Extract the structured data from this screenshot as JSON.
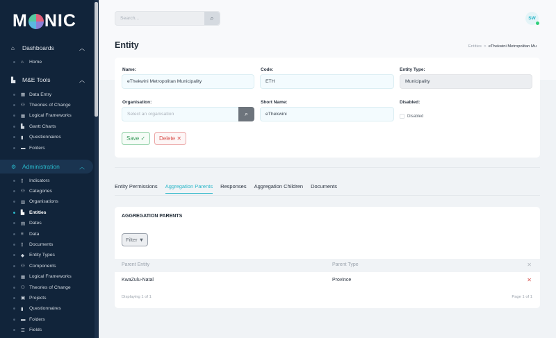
{
  "app": {
    "logo": "MONIC"
  },
  "sidebar": {
    "sections": [
      {
        "label": "Dashboards",
        "icon": "home-icon",
        "items": [
          {
            "label": "Home",
            "icon": "home-icon"
          }
        ]
      },
      {
        "label": "M&E Tools",
        "icon": "chart-icon",
        "items": [
          {
            "label": "Data Entry",
            "icon": "table-icon"
          },
          {
            "label": "Theories of Change",
            "icon": "sitemap-icon"
          },
          {
            "label": "Logical Frameworks",
            "icon": "table-icon"
          },
          {
            "label": "Gantt Charts",
            "icon": "chart-icon"
          },
          {
            "label": "Questionnaires",
            "icon": "clipboard-icon"
          },
          {
            "label": "Folders",
            "icon": "folder-icon"
          }
        ]
      },
      {
        "label": "Administration",
        "icon": "cogs-icon",
        "items": [
          {
            "label": "Indicators",
            "icon": "thermometer-icon"
          },
          {
            "label": "Categories",
            "icon": "sitemap-icon"
          },
          {
            "label": "Organisations",
            "icon": "building-icon"
          },
          {
            "label": "Entities",
            "icon": "city-icon"
          },
          {
            "label": "Dates",
            "icon": "calendar-icon"
          },
          {
            "label": "Data",
            "icon": "database-icon"
          },
          {
            "label": "Documents",
            "icon": "file-icon"
          },
          {
            "label": "Entity Types",
            "icon": "tags-icon"
          },
          {
            "label": "Components",
            "icon": "sitemap-icon"
          },
          {
            "label": "Logical Frameworks",
            "icon": "table-icon"
          },
          {
            "label": "Theories of Change",
            "icon": "sitemap-icon"
          },
          {
            "label": "Projects",
            "icon": "briefcase-icon"
          },
          {
            "label": "Questionnaires",
            "icon": "clipboard-icon"
          },
          {
            "label": "Folders",
            "icon": "folder-icon"
          },
          {
            "label": "Fields",
            "icon": "list-icon"
          }
        ]
      }
    ]
  },
  "header": {
    "search_placeholder": "Search...",
    "avatar": "SW"
  },
  "page": {
    "title": "Entity",
    "breadcrumb": [
      "Entities",
      "eThekwini Metropolitan Mu"
    ]
  },
  "form": {
    "name_label": "Name:",
    "name": "eThekwini Metropolitan Municipality",
    "code_label": "Code:",
    "code": "ETH",
    "type_label": "Entity Type:",
    "type": "Municipality",
    "org_label": "Organisation:",
    "org_placeholder": "Select an organisation",
    "short_label": "Short Name:",
    "short": "eThekwini",
    "disabled_label": "Disabled:",
    "disabled_check": "Disabled",
    "disabled": false,
    "save": "Save",
    "delete": "Delete"
  },
  "tabs": [
    "Entity Permissions",
    "Aggregation Parents",
    "Responses",
    "Aggregation Children",
    "Documents"
  ],
  "active_tab": "Aggregation Parents",
  "panel": {
    "title": "AGGREGATION PARENTS",
    "filter": "Filter",
    "columns": [
      "Parent Entity",
      "Parent Type"
    ],
    "rows": [
      [
        "KwaZulu-Natal",
        "Province"
      ]
    ],
    "displaying": "Displaying 1 of 1",
    "page": "Page 1 of 1"
  },
  "colors": {
    "accent": "#29b6c8",
    "sidebar": "#11243a",
    "save": "#3a9a5c",
    "delete": "#d9534f"
  }
}
